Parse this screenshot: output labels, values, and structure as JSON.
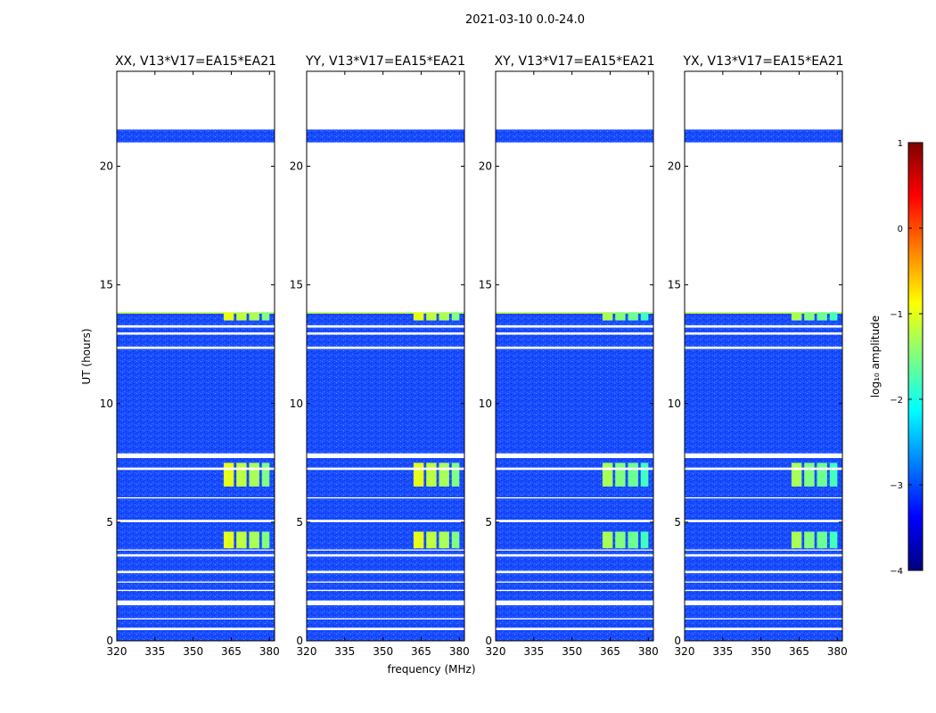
{
  "figure": {
    "suptitle": "2021-03-10 0.0-24.0",
    "xlabel": "frequency (MHz)",
    "ylabel": "UT (hours)"
  },
  "colorbar": {
    "label": "log₁₀ amplitude",
    "range": [
      -4,
      1
    ],
    "ticks": [
      1,
      0,
      -1,
      -2,
      -3,
      -4
    ],
    "tick_labels": [
      "1",
      "0",
      "−1",
      "−2",
      "−3",
      "−4"
    ],
    "colormap": "jet"
  },
  "chart_data": {
    "type": "heatmap",
    "x_range": [
      320,
      382
    ],
    "y_range": [
      0,
      24
    ],
    "x_ticks": [
      320,
      335,
      350,
      365,
      380
    ],
    "y_ticks": [
      0,
      5,
      10,
      15,
      20
    ],
    "panels": [
      {
        "title": "XX, V13*V17=EA15*EA21"
      },
      {
        "title": "YY, V13*V17=EA15*EA21"
      },
      {
        "title": "XY, V13*V17=EA15*EA21"
      },
      {
        "title": "YX, V13*V17=EA15*EA21"
      }
    ],
    "data_intervals_hours": [
      [
        0.0,
        13.9
      ],
      [
        21.0,
        21.55
      ]
    ],
    "gaps_hours": [
      [
        0.45,
        0.55
      ],
      [
        0.9,
        0.95
      ],
      [
        1.5,
        1.7
      ],
      [
        2.1,
        2.15
      ],
      [
        2.45,
        2.5
      ],
      [
        2.85,
        2.95
      ],
      [
        3.55,
        3.65
      ],
      [
        3.8,
        3.85
      ],
      [
        5.0,
        5.1
      ],
      [
        6.0,
        6.05
      ],
      [
        7.2,
        7.3
      ],
      [
        7.7,
        7.9
      ],
      [
        12.3,
        12.4
      ],
      [
        12.9,
        13.0
      ],
      [
        13.2,
        13.3
      ],
      [
        13.85,
        21.0
      ],
      [
        21.55,
        24.0
      ]
    ],
    "band_levels_log10": [
      {
        "freq_range": [
          362,
          366
        ],
        "hours": [
          [
            3.9,
            4.6
          ],
          [
            6.5,
            7.5
          ],
          [
            13.5,
            13.85
          ]
        ],
        "value": -1.0
      },
      {
        "freq_range": [
          367,
          371
        ],
        "hours": [
          [
            3.9,
            4.6
          ],
          [
            6.5,
            7.5
          ],
          [
            13.5,
            13.85
          ]
        ],
        "value": -1.2
      },
      {
        "freq_range": [
          372,
          376
        ],
        "hours": [
          [
            3.9,
            4.6
          ],
          [
            6.5,
            7.5
          ],
          [
            13.5,
            13.85
          ]
        ],
        "value": -1.3
      },
      {
        "freq_range": [
          377,
          380
        ],
        "hours": [
          [
            3.9,
            4.6
          ],
          [
            6.5,
            7.5
          ],
          [
            13.5,
            13.85
          ]
        ],
        "value": -1.5
      }
    ],
    "background_log10": -3.0
  }
}
